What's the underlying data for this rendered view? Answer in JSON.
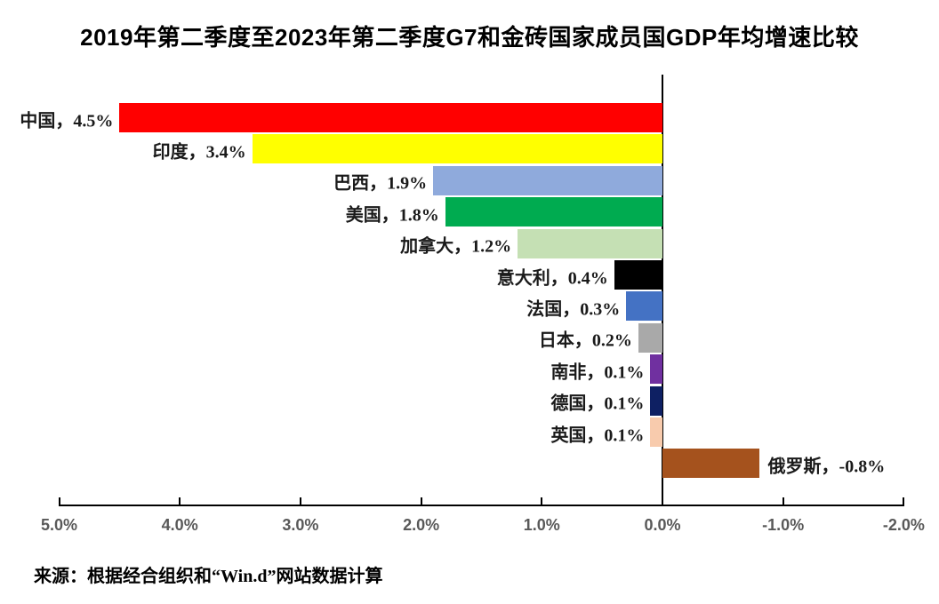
{
  "chart_data": {
    "type": "bar",
    "orientation": "horizontal",
    "title": "2019年第二季度至2023年第二季度G7和金砖国家成员国GDP年均增速比较",
    "value_unit": "%",
    "categories": [
      "中国",
      "印度",
      "巴西",
      "美国",
      "加拿大",
      "意大利",
      "法国",
      "日本",
      "南非",
      "德国",
      "英国",
      "俄罗斯"
    ],
    "values": [
      4.5,
      3.4,
      1.9,
      1.8,
      1.2,
      0.4,
      0.3,
      0.2,
      0.1,
      0.1,
      0.1,
      -0.8
    ],
    "series": [
      {
        "id": "china",
        "label": "中国",
        "value": 4.5,
        "display": "中国，4.5%",
        "color": "#FF0000"
      },
      {
        "id": "india",
        "label": "印度",
        "value": 3.4,
        "display": "印度，3.4%",
        "color": "#FFFF00"
      },
      {
        "id": "brazil",
        "label": "巴西",
        "value": 1.9,
        "display": "巴西，1.9%",
        "color": "#8FAADC"
      },
      {
        "id": "usa",
        "label": "美国",
        "value": 1.8,
        "display": "美国，1.8%",
        "color": "#00AB50"
      },
      {
        "id": "canada",
        "label": "加拿大",
        "value": 1.2,
        "display": "加拿大，1.2%",
        "color": "#C5E0B4"
      },
      {
        "id": "italy",
        "label": "意大利",
        "value": 0.4,
        "display": "意大利，0.4%",
        "color": "#000000"
      },
      {
        "id": "france",
        "label": "法国",
        "value": 0.3,
        "display": "法国，0.3%",
        "color": "#4472C4"
      },
      {
        "id": "japan",
        "label": "日本",
        "value": 0.2,
        "display": "日本，0.2%",
        "color": "#A9A9A9"
      },
      {
        "id": "south-africa",
        "label": "南非",
        "value": 0.1,
        "display": "南非，0.1%",
        "color": "#7030A0"
      },
      {
        "id": "germany",
        "label": "德国",
        "value": 0.1,
        "display": "德国，0.1%",
        "color": "#0E2063"
      },
      {
        "id": "uk",
        "label": "英国",
        "value": 0.1,
        "display": "英国，0.1%",
        "color": "#F8CBAD"
      },
      {
        "id": "russia",
        "label": "俄罗斯",
        "value": -0.8,
        "display": "俄罗斯，-0.8%",
        "color": "#A5521D"
      }
    ],
    "x_axis": {
      "reversed": true,
      "range": [
        5,
        -2
      ],
      "ticks": [
        {
          "label": "5.0%",
          "value": 5
        },
        {
          "label": "4.0%",
          "value": 4
        },
        {
          "label": "3.0%",
          "value": 3
        },
        {
          "label": "2.0%",
          "value": 2
        },
        {
          "label": "1.0%",
          "value": 1
        },
        {
          "label": "0.0%",
          "value": 0
        },
        {
          "label": "-1.0%",
          "value": -1
        },
        {
          "label": "-2.0%",
          "value": -2
        }
      ]
    },
    "grid": false,
    "legend": false,
    "axis_color": "#000000",
    "tick_label_color": "#595959"
  },
  "source_note": "来源：根据经合组织和“Win.d”网站数据计算"
}
